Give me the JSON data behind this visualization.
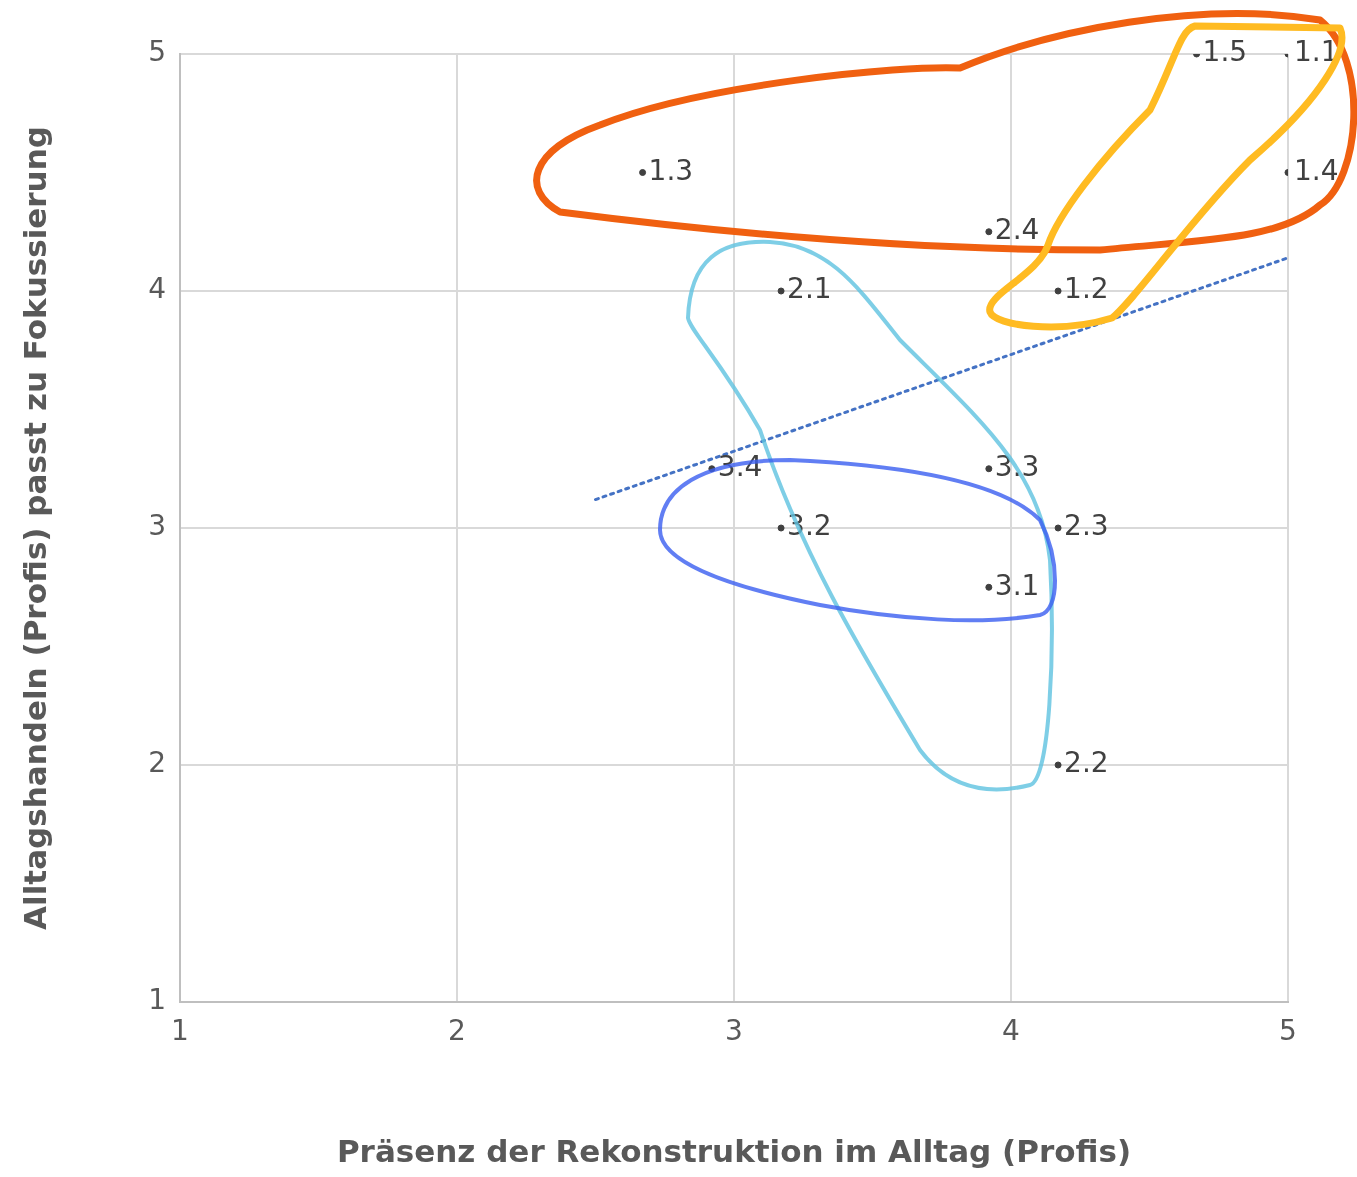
{
  "chart_data": {
    "type": "scatter",
    "xlabel": "Präsenz der Rekonstruktion im Alltag (Profis)",
    "ylabel": "Alltagshandeln (Profis) passt zu Fokussierung",
    "xlim": [
      1,
      5
    ],
    "xticks": [
      1,
      2,
      3,
      4,
      5
    ],
    "ylim": [
      1,
      5
    ],
    "yticks": [
      1,
      2,
      3,
      4,
      5
    ],
    "grid": true,
    "legend": false,
    "series": [
      {
        "type": "scatter",
        "color": "#404040",
        "marker": "circle",
        "x": [
          5,
          4.17,
          2.67,
          5,
          4.67,
          3.17,
          4.17,
          4.17,
          3.92,
          3.92,
          3.17,
          3.92,
          2.92
        ],
        "values": [
          5,
          4,
          4.5,
          4.5,
          5,
          4,
          2,
          3,
          4.25,
          2.75,
          3,
          3.25,
          3.25
        ]
      },
      {
        "type": "line",
        "color": "#4472c4",
        "line_style": "dotted",
        "marker": "none",
        "x": [
          2.5,
          5
        ],
        "values": [
          3.12,
          4.14
        ]
      }
    ],
    "annotations": [
      {
        "text": "1.1",
        "x": 5,
        "y": 5
      },
      {
        "text": "1.2",
        "x": 4.17,
        "y": 4
      },
      {
        "text": "1.3",
        "x": 2.67,
        "y": 4.5
      },
      {
        "text": "1.4",
        "x": 5,
        "y": 4.5
      },
      {
        "text": "1.5",
        "x": 4.67,
        "y": 5
      },
      {
        "text": "2.1",
        "x": 3.17,
        "y": 4
      },
      {
        "text": "2.2",
        "x": 4.17,
        "y": 2
      },
      {
        "text": "2.3",
        "x": 4.17,
        "y": 3
      },
      {
        "text": "2.4",
        "x": 3.92,
        "y": 4.25
      },
      {
        "text": "3.1",
        "x": 3.92,
        "y": 2.75
      },
      {
        "text": "3.2",
        "x": 3.17,
        "y": 3
      },
      {
        "text": "3.3",
        "x": 3.92,
        "y": 3.25
      },
      {
        "text": "3.4",
        "x": 2.92,
        "y": 3.25
      }
    ]
  }
}
